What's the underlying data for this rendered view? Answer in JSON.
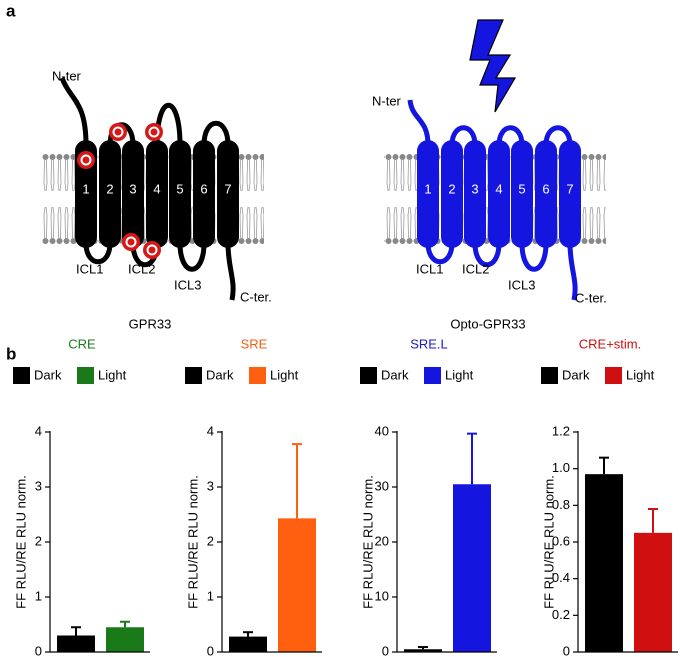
{
  "panel_labels": [
    "a",
    "b"
  ],
  "diagram": {
    "left": {
      "title": "GPR33",
      "n_ter": "N-ter",
      "c_ter": "C-ter.",
      "helices": [
        "1",
        "2",
        "3",
        "4",
        "5",
        "6",
        "7"
      ],
      "loops": [
        "ICL1",
        "ICL2",
        "ICL3"
      ]
    },
    "right": {
      "title": "Opto-GPR33",
      "n_ter": "N-ter",
      "c_ter": "C-ter.",
      "helices": [
        "1",
        "2",
        "3",
        "4",
        "5",
        "6",
        "7"
      ],
      "loops": [
        "ICL1",
        "ICL2",
        "ICL3"
      ]
    }
  },
  "chart_data": [
    {
      "type": "bar",
      "title": "CRE",
      "title_color": "#1a7a1a",
      "ylabel": "FF RLU/RE RLU norm.",
      "categories": [
        "Dark",
        "Light"
      ],
      "colors": [
        "#000000",
        "#1a7a1a"
      ],
      "values": [
        0.3,
        0.45
      ],
      "errors": [
        0.15,
        0.1
      ],
      "ylim": [
        0,
        4
      ],
      "yticks": [
        0,
        1,
        2,
        3,
        4
      ]
    },
    {
      "type": "bar",
      "title": "SRE",
      "title_color": "#f06010",
      "ylabel": "FF RLU/RE RLU norm.",
      "categories": [
        "Dark",
        "Light"
      ],
      "colors": [
        "#000000",
        "#ff6010"
      ],
      "values": [
        0.28,
        2.43
      ],
      "errors": [
        0.08,
        1.35
      ],
      "ylim": [
        0,
        4
      ],
      "yticks": [
        0,
        1,
        2,
        3,
        4
      ]
    },
    {
      "type": "bar",
      "title": "SRE.L",
      "title_color": "#1a1ac8",
      "ylabel": "FF RLU/RE RLU norm.",
      "categories": [
        "Dark",
        "Light"
      ],
      "colors": [
        "#000000",
        "#1515e0"
      ],
      "values": [
        0.5,
        30.5
      ],
      "errors": [
        0.4,
        9.2
      ],
      "ylim": [
        0,
        40
      ],
      "yticks": [
        0,
        10,
        20,
        30,
        40
      ]
    },
    {
      "type": "bar",
      "title": "CRE+stim.",
      "title_color": "#c81010",
      "ylabel": "FF RLU/RE RLU norm.",
      "categories": [
        "Dark",
        "Light"
      ],
      "colors": [
        "#000000",
        "#d01010"
      ],
      "values": [
        0.97,
        0.65
      ],
      "errors": [
        0.09,
        0.13
      ],
      "ylim": [
        0,
        1.2
      ],
      "yticks": [
        0,
        0.2,
        0.4,
        0.6,
        0.8,
        {
          "value": 1,
          "label": "1.0"
        },
        1.2
      ]
    }
  ]
}
